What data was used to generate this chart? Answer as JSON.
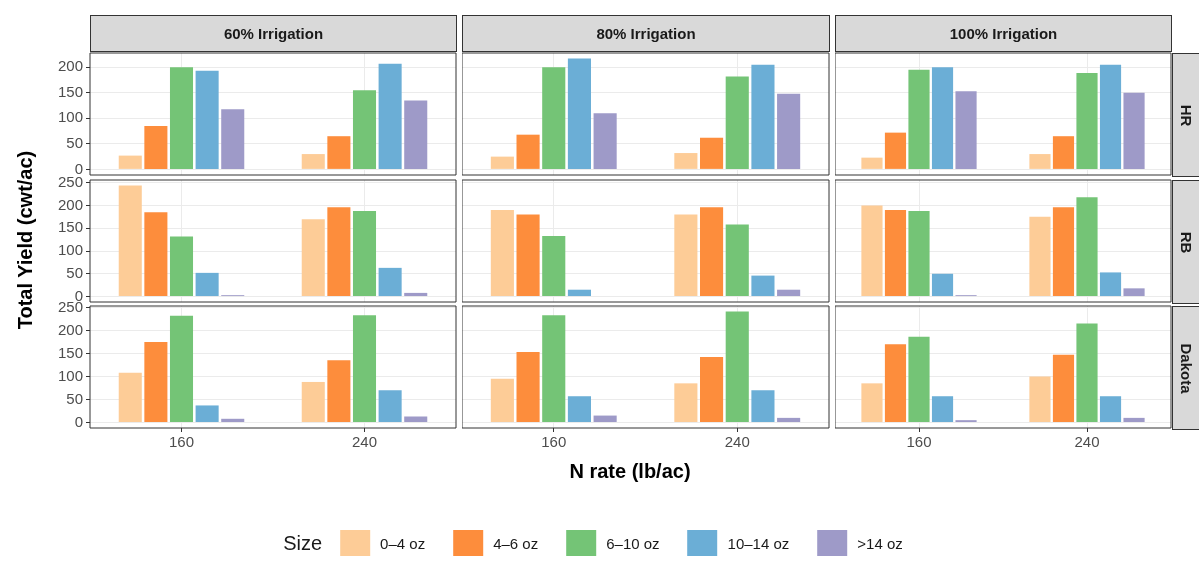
{
  "chart_data": [
    {
      "type": "bar",
      "title": "60% Irrigation",
      "categories": [
        "160",
        "240"
      ],
      "series": [
        {
          "color": "#fdcc97",
          "values": [
            27,
            30
          ]
        },
        {
          "color": "#fd8d3c",
          "values": [
            85,
            65
          ]
        },
        {
          "color": "#74c476",
          "values": [
            200,
            155
          ]
        },
        {
          "color": "#6baed6",
          "values": [
            193,
            207
          ]
        },
        {
          "color": "#9e9ac8",
          "values": [
            118,
            135
          ]
        }
      ],
      "ylim": [
        -11,
        228
      ],
      "yticks": [
        0,
        50,
        100,
        150,
        200
      ],
      "grid": true,
      "tick_labels": "y"
    },
    {
      "type": "bar",
      "title": "80% Irrigation",
      "categories": [
        "160",
        "240"
      ],
      "series": [
        {
          "color": "#fdcc97",
          "values": [
            25,
            32
          ]
        },
        {
          "color": "#fd8d3c",
          "values": [
            68,
            62
          ]
        },
        {
          "color": "#74c476",
          "values": [
            200,
            182
          ]
        },
        {
          "color": "#6baed6",
          "values": [
            217,
            205
          ]
        },
        {
          "color": "#9e9ac8",
          "values": [
            110,
            148
          ]
        }
      ],
      "ylim": [
        -11,
        228
      ],
      "yticks": [
        0,
        50,
        100,
        150,
        200
      ],
      "grid": true,
      "tick_labels": false
    },
    {
      "type": "bar",
      "title": "100% Irrigation",
      "y2label": "HR",
      "categories": [
        "160",
        "240"
      ],
      "series": [
        {
          "color": "#fdcc97",
          "values": [
            23,
            30
          ]
        },
        {
          "color": "#fd8d3c",
          "values": [
            72,
            65
          ]
        },
        {
          "color": "#74c476",
          "values": [
            195,
            189
          ]
        },
        {
          "color": "#6baed6",
          "values": [
            200,
            205
          ]
        },
        {
          "color": "#9e9ac8",
          "values": [
            153,
            150
          ]
        }
      ],
      "ylim": [
        -11,
        228
      ],
      "yticks": [
        0,
        50,
        100,
        150,
        200
      ],
      "grid": true,
      "tick_labels": false
    },
    {
      "type": "bar",
      "ylabel": "Total Yield (cwt/ac)",
      "categories": [
        "160",
        "240"
      ],
      "series": [
        {
          "color": "#fdcc97",
          "values": [
            244,
            170
          ]
        },
        {
          "color": "#fd8d3c",
          "values": [
            185,
            196
          ]
        },
        {
          "color": "#74c476",
          "values": [
            132,
            188
          ]
        },
        {
          "color": "#6baed6",
          "values": [
            52,
            63
          ]
        },
        {
          "color": "#9e9ac8",
          "values": [
            3,
            8
          ]
        }
      ],
      "ylim": [
        -12,
        256
      ],
      "yticks": [
        0,
        50,
        100,
        150,
        200,
        250
      ],
      "grid": true,
      "tick_labels": "y"
    },
    {
      "type": "bar",
      "categories": [
        "160",
        "240"
      ],
      "series": [
        {
          "color": "#fdcc97",
          "values": [
            190,
            180
          ]
        },
        {
          "color": "#fd8d3c",
          "values": [
            180,
            196
          ]
        },
        {
          "color": "#74c476",
          "values": [
            133,
            158
          ]
        },
        {
          "color": "#6baed6",
          "values": [
            15,
            46
          ]
        },
        {
          "color": "#9e9ac8",
          "values": [
            0,
            15
          ]
        }
      ],
      "ylim": [
        -12,
        256
      ],
      "yticks": [
        0,
        50,
        100,
        150,
        200,
        250
      ],
      "grid": true,
      "tick_labels": false
    },
    {
      "type": "bar",
      "y2label": "RB",
      "categories": [
        "160",
        "240"
      ],
      "series": [
        {
          "color": "#fdcc97",
          "values": [
            200,
            175
          ]
        },
        {
          "color": "#fd8d3c",
          "values": [
            190,
            196
          ]
        },
        {
          "color": "#74c476",
          "values": [
            188,
            218
          ]
        },
        {
          "color": "#6baed6",
          "values": [
            50,
            53
          ]
        },
        {
          "color": "#9e9ac8",
          "values": [
            3,
            18
          ]
        }
      ],
      "ylim": [
        -12,
        256
      ],
      "yticks": [
        0,
        50,
        100,
        150,
        200,
        250
      ],
      "grid": true,
      "tick_labels": false
    },
    {
      "type": "bar",
      "categories": [
        "160",
        "240"
      ],
      "series": [
        {
          "color": "#fdcc97",
          "values": [
            108,
            88
          ]
        },
        {
          "color": "#fd8d3c",
          "values": [
            175,
            135
          ]
        },
        {
          "color": "#74c476",
          "values": [
            232,
            233
          ]
        },
        {
          "color": "#6baed6",
          "values": [
            37,
            70
          ]
        },
        {
          "color": "#9e9ac8",
          "values": [
            8,
            13
          ]
        }
      ],
      "ylim": [
        -12,
        253
      ],
      "yticks": [
        0,
        50,
        100,
        150,
        200,
        250
      ],
      "grid": true
    },
    {
      "type": "bar",
      "xlabel": "N rate (lb/ac)",
      "legend_title": "Size",
      "legend": "bottom",
      "categories": [
        "160",
        "240"
      ],
      "series": [
        {
          "name": "0–4 oz",
          "color": "#fdcc97",
          "values": [
            95,
            85
          ]
        },
        {
          "name": "4–6 oz",
          "color": "#fd8d3c",
          "values": [
            153,
            142
          ]
        },
        {
          "name": "6–10 oz",
          "color": "#74c476",
          "values": [
            233,
            241
          ]
        },
        {
          "name": "10–14 oz",
          "color": "#6baed6",
          "values": [
            57,
            70
          ]
        },
        {
          "name": ">14 oz",
          "color": "#9e9ac8",
          "values": [
            15,
            10
          ]
        }
      ],
      "ylim": [
        -12,
        253
      ],
      "yticks": [
        0,
        50,
        100,
        150,
        200,
        250
      ],
      "grid": true,
      "tick_labels": "x"
    },
    {
      "type": "bar",
      "y2label": "Dakota",
      "categories": [
        "160",
        "240"
      ],
      "series": [
        {
          "color": "#fdcc97",
          "values": [
            85,
            100
          ]
        },
        {
          "color": "#fd8d3c",
          "values": [
            170,
            147
          ]
        },
        {
          "color": "#74c476",
          "values": [
            186,
            215
          ]
        },
        {
          "color": "#6baed6",
          "values": [
            57,
            57
          ]
        },
        {
          "color": "#9e9ac8",
          "values": [
            5,
            10
          ]
        }
      ],
      "ylim": [
        -12,
        253
      ],
      "yticks": [
        0,
        50,
        100,
        150,
        200,
        250
      ],
      "grid": true,
      "tick_labels": "x"
    }
  ]
}
